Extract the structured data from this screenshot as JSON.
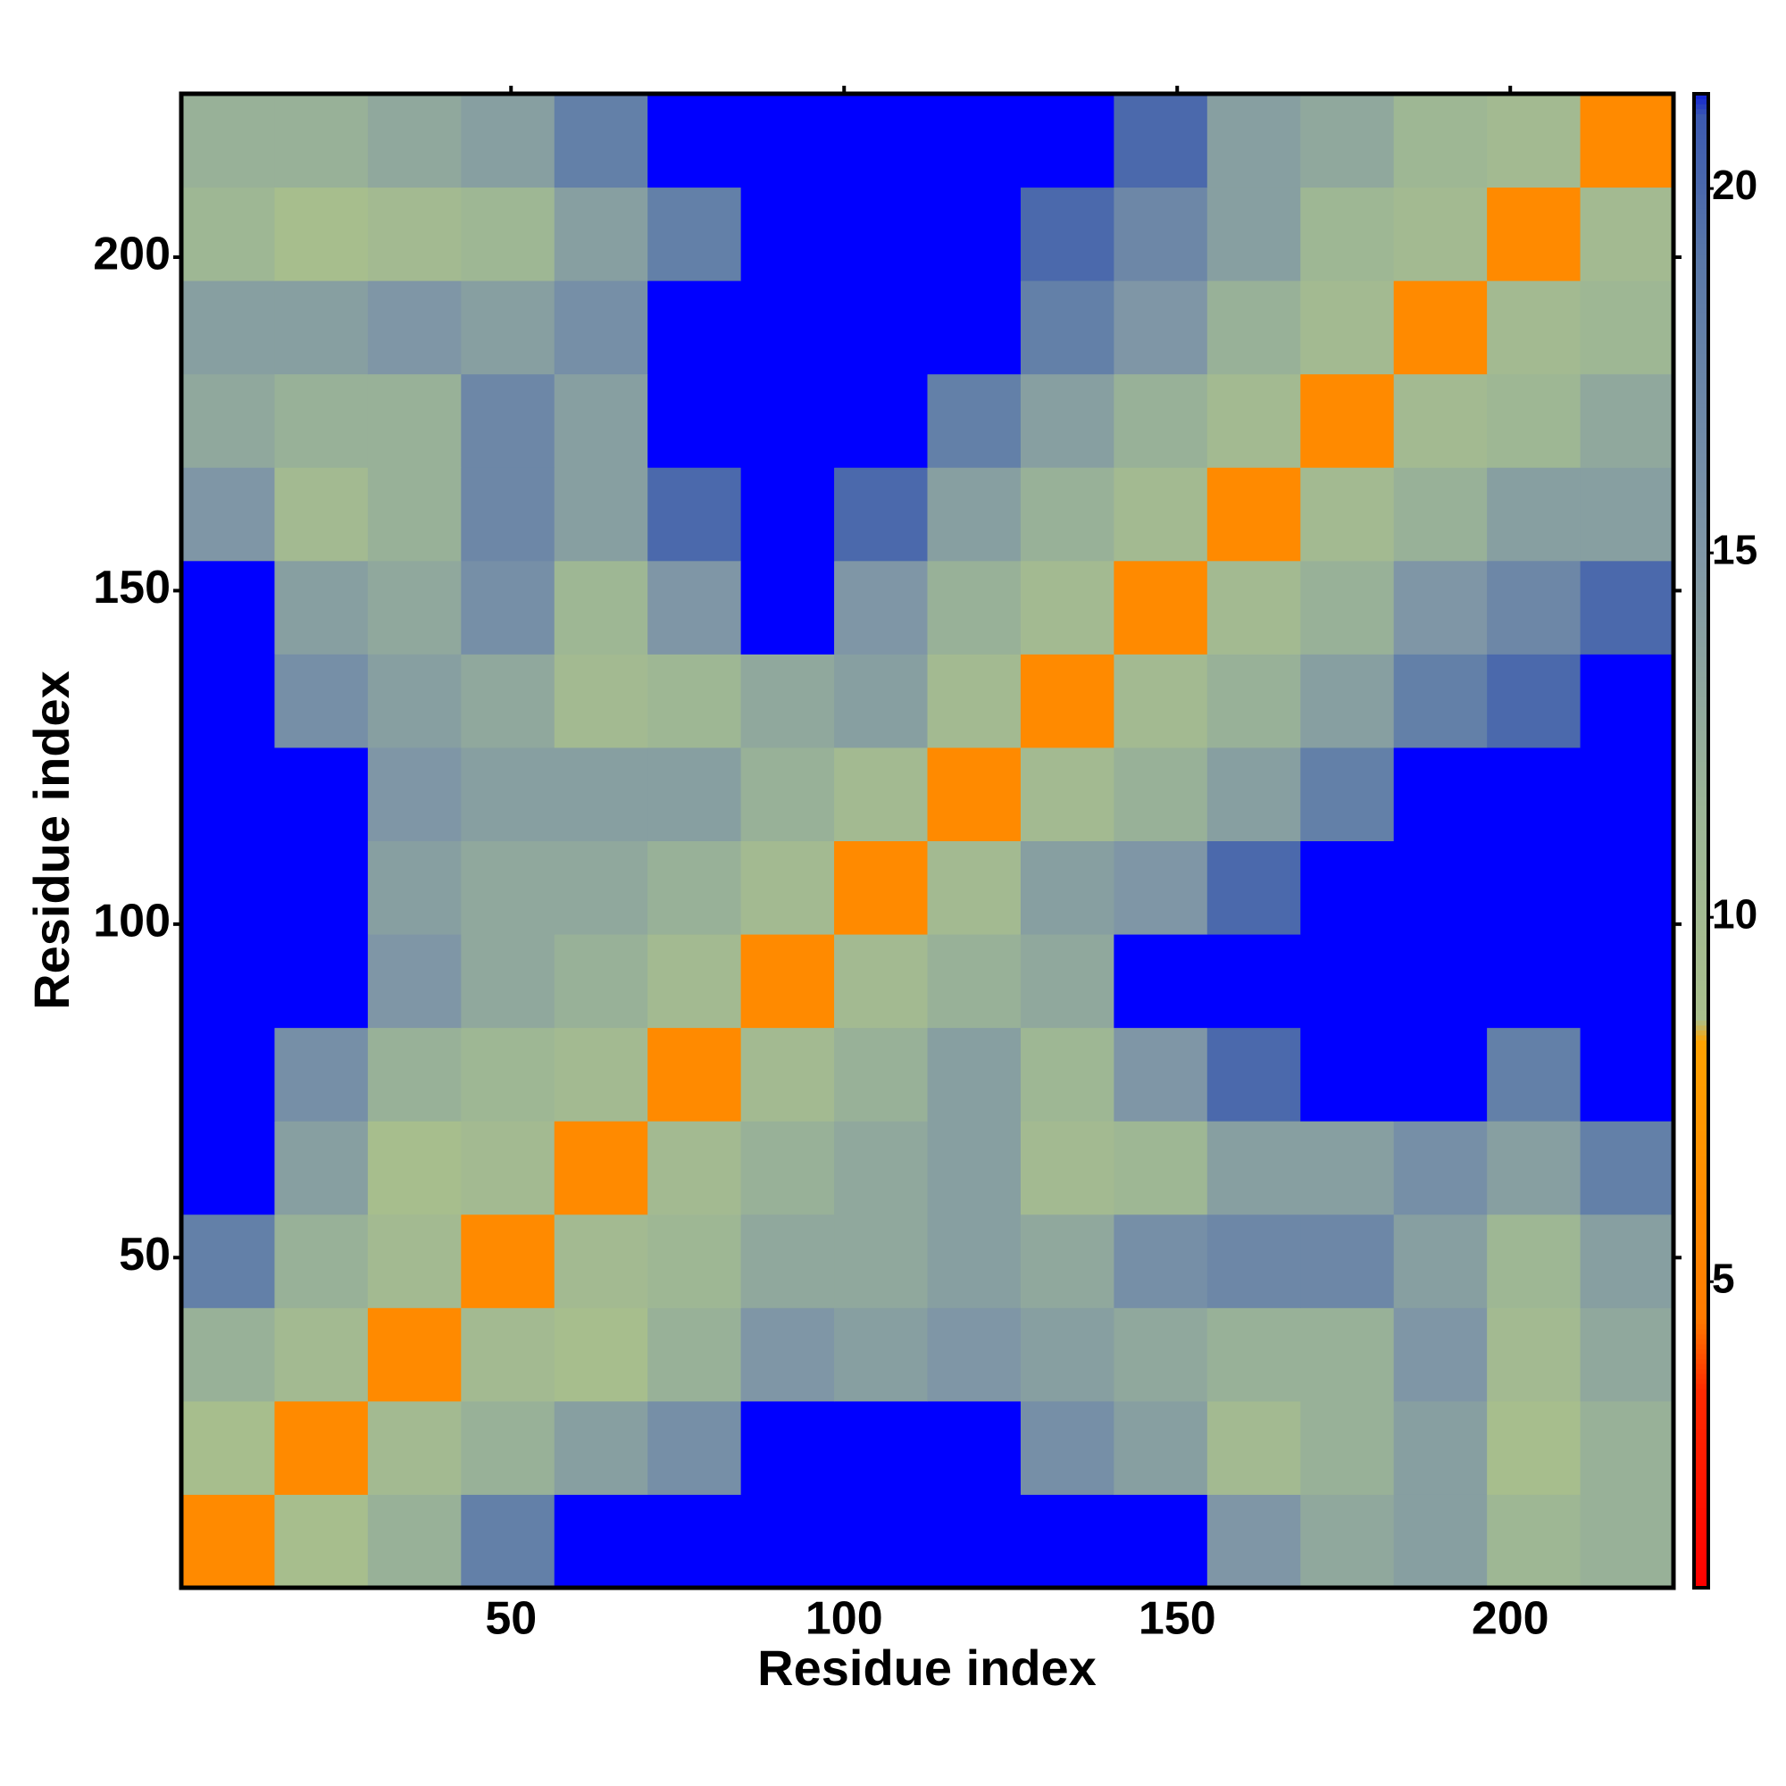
{
  "chart_data": {
    "type": "heatmap",
    "xlabel": "Residue index",
    "ylabel": "Residue index",
    "xlim": [
      0.5,
      224.5
    ],
    "ylim": [
      0.5,
      224.5
    ],
    "xticks": [
      50,
      100,
      150,
      200
    ],
    "yticks": [
      50,
      100,
      150,
      200
    ],
    "xbins": [
      0.5,
      14.5,
      28.5,
      42.5,
      56.5,
      70.5,
      84.5,
      98.5,
      112.5,
      126.5,
      140.5,
      154.5,
      168.5,
      182.5,
      196.5,
      210.5,
      224.5
    ],
    "ybins": [
      0.5,
      14.5,
      28.5,
      42.5,
      56.5,
      70.5,
      84.5,
      98.5,
      112.5,
      126.5,
      140.5,
      154.5,
      168.5,
      182.5,
      196.5,
      210.5,
      224.5
    ],
    "z": [
      [
        6,
        9,
        12,
        18,
        22,
        25,
        25,
        25,
        25,
        25,
        22,
        15,
        13,
        14,
        11,
        12
      ],
      [
        9,
        6,
        10,
        12,
        14,
        16,
        22,
        25,
        25,
        16,
        14,
        10,
        12,
        14,
        9,
        12
      ],
      [
        12,
        10,
        6,
        10,
        9,
        12,
        15,
        14,
        15,
        14,
        13,
        12,
        12,
        15,
        10,
        13
      ],
      [
        18,
        12,
        10,
        6,
        10,
        11,
        13,
        13,
        14,
        13,
        16,
        17,
        17,
        14,
        11,
        14
      ],
      [
        22,
        14,
        9,
        10,
        6,
        10,
        12,
        13,
        14,
        10,
        11,
        14,
        14,
        16,
        14,
        18
      ],
      [
        25,
        16,
        12,
        11,
        10,
        6,
        10,
        12,
        14,
        11,
        15,
        20,
        22,
        25,
        18,
        22
      ],
      [
        25,
        22,
        15,
        13,
        12,
        10,
        6,
        10,
        12,
        13,
        25,
        25,
        22,
        25,
        25,
        25
      ],
      [
        25,
        25,
        14,
        13,
        13,
        12,
        10,
        6,
        10,
        14,
        15,
        20,
        22,
        25,
        25,
        25
      ],
      [
        25,
        25,
        15,
        14,
        14,
        14,
        12,
        10,
        6,
        10,
        12,
        14,
        18,
        22,
        25,
        25
      ],
      [
        25,
        16,
        14,
        13,
        10,
        11,
        13,
        14,
        10,
        6,
        10,
        12,
        14,
        18,
        20,
        25
      ],
      [
        22,
        14,
        13,
        16,
        11,
        15,
        25,
        15,
        12,
        10,
        6,
        10,
        12,
        15,
        17,
        20
      ],
      [
        15,
        10,
        12,
        17,
        14,
        20,
        25,
        20,
        14,
        12,
        10,
        6,
        10,
        12,
        14,
        14
      ],
      [
        13,
        12,
        12,
        17,
        14,
        22,
        22,
        22,
        18,
        14,
        12,
        10,
        6,
        10,
        11,
        13
      ],
      [
        14,
        14,
        15,
        14,
        16,
        25,
        25,
        25,
        22,
        18,
        15,
        12,
        10,
        6,
        10,
        11
      ],
      [
        11,
        9,
        10,
        11,
        14,
        18,
        25,
        25,
        25,
        20,
        17,
        14,
        11,
        10,
        6,
        10
      ],
      [
        12,
        12,
        13,
        14,
        18,
        22,
        25,
        25,
        25,
        25,
        20,
        14,
        13,
        11,
        10,
        6
      ]
    ],
    "colorbar": {
      "lim": [
        0.8,
        21.3
      ],
      "ticks": [
        5,
        10,
        15,
        20
      ],
      "stops": [
        [
          0.8,
          "#ff0000"
        ],
        [
          3.5,
          "#ff2a00"
        ],
        [
          4.5,
          "#ff7a00"
        ],
        [
          8.3,
          "#ffa200"
        ],
        [
          8.6,
          "#a9bf8c"
        ],
        [
          11.5,
          "#9cb596"
        ],
        [
          15,
          "#7f96a6"
        ],
        [
          19,
          "#5a78a8"
        ],
        [
          21,
          "#3c5ab0"
        ],
        [
          21.3,
          "#1020d8"
        ]
      ],
      "over_color": "#0000ff"
    }
  }
}
